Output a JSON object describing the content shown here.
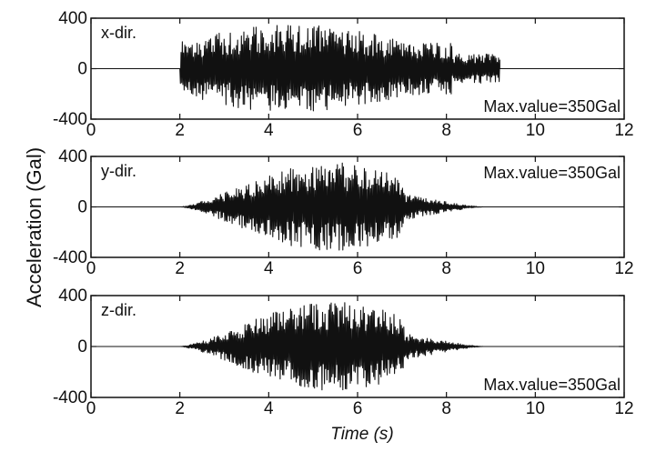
{
  "chart_data": {
    "type": "line",
    "ylabel": "Acceleration (Gal)",
    "xlabel": "Time (s)",
    "xlim": [
      0,
      12
    ],
    "ylim": [
      -400,
      400
    ],
    "xticks": [
      "0",
      "2",
      "4",
      "6",
      "8",
      "10",
      "12"
    ],
    "yticks": [
      "400",
      "0",
      "-400"
    ],
    "signal": {
      "start": 2.0,
      "end": 9.2
    },
    "series": [
      {
        "name": "x-dir.",
        "annotation": "Max.value=350Gal",
        "peak": 350,
        "annotation_pos": "bottom-right",
        "envelope": "uniform",
        "color": "#111111"
      },
      {
        "name": "y-dir.",
        "annotation": "Max.value=350Gal",
        "peak": 350,
        "annotation_pos": "top-right",
        "envelope": "bell",
        "color": "#111111"
      },
      {
        "name": "z-dir.",
        "annotation": "Max.value=350Gal",
        "peak": 350,
        "annotation_pos": "bottom-right",
        "envelope": "bell",
        "color": "#111111"
      }
    ]
  }
}
